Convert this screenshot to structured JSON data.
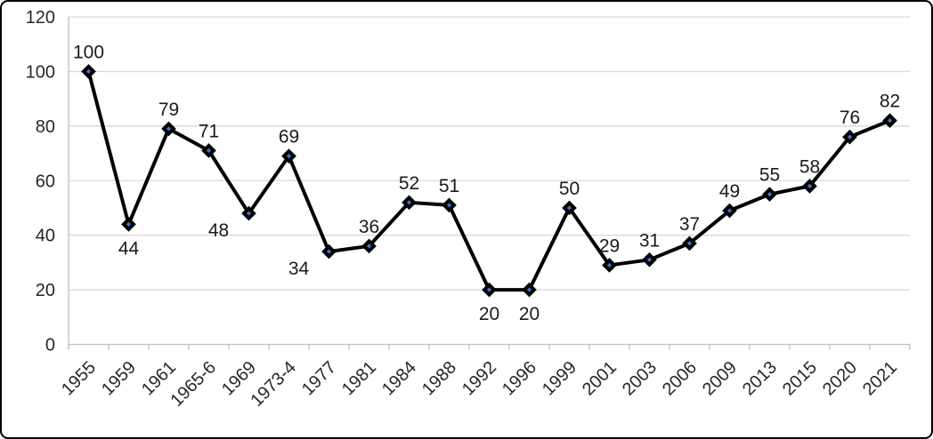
{
  "chart_data": {
    "type": "line",
    "title": "",
    "xlabel": "",
    "ylabel": "",
    "categories": [
      "1955",
      "1959",
      "1961",
      "1965-6",
      "1969",
      "1973-4",
      "1977",
      "1981",
      "1984",
      "1988",
      "1992",
      "1996",
      "1999",
      "2001",
      "2003",
      "2006",
      "2009",
      "2013",
      "2015",
      "2020",
      "2021"
    ],
    "series": [
      {
        "name": "values",
        "values": [
          100,
          44,
          79,
          71,
          48,
          69,
          34,
          36,
          52,
          51,
          20,
          20,
          50,
          29,
          31,
          37,
          49,
          55,
          58,
          76,
          82
        ],
        "data_labels": [
          "100",
          "44",
          "79",
          "71",
          "48",
          "69",
          "34",
          "36",
          "52",
          "51",
          "20",
          "20",
          "50",
          "29",
          "31",
          "37",
          "49",
          "55",
          "58",
          "76",
          "82"
        ],
        "label_positions": [
          "above",
          "below",
          "above",
          "above",
          "below-left",
          "above",
          "below-left",
          "above",
          "above",
          "above",
          "below",
          "below",
          "above",
          "above",
          "above",
          "above",
          "above",
          "above",
          "above",
          "above",
          "above"
        ]
      }
    ],
    "ylim": [
      0,
      120
    ],
    "y_ticks": [
      "0",
      "20",
      "40",
      "60",
      "80",
      "100",
      "120"
    ],
    "y_tick_values": [
      0,
      20,
      40,
      60,
      80,
      100,
      120
    ],
    "x_tick_rotation": -45,
    "grid": true,
    "legend_position": "none",
    "marker_shape": "diamond",
    "colors": {
      "line": "#000000",
      "marker_fill": "#4472c4",
      "marker_border": "#000000",
      "gridline": "#d9d9d9",
      "axis_line": "#bfbfbf",
      "tick_label": "#262626",
      "data_label": "#1a1a1a",
      "chart_border": "#000000",
      "background": "#ffffff"
    }
  }
}
